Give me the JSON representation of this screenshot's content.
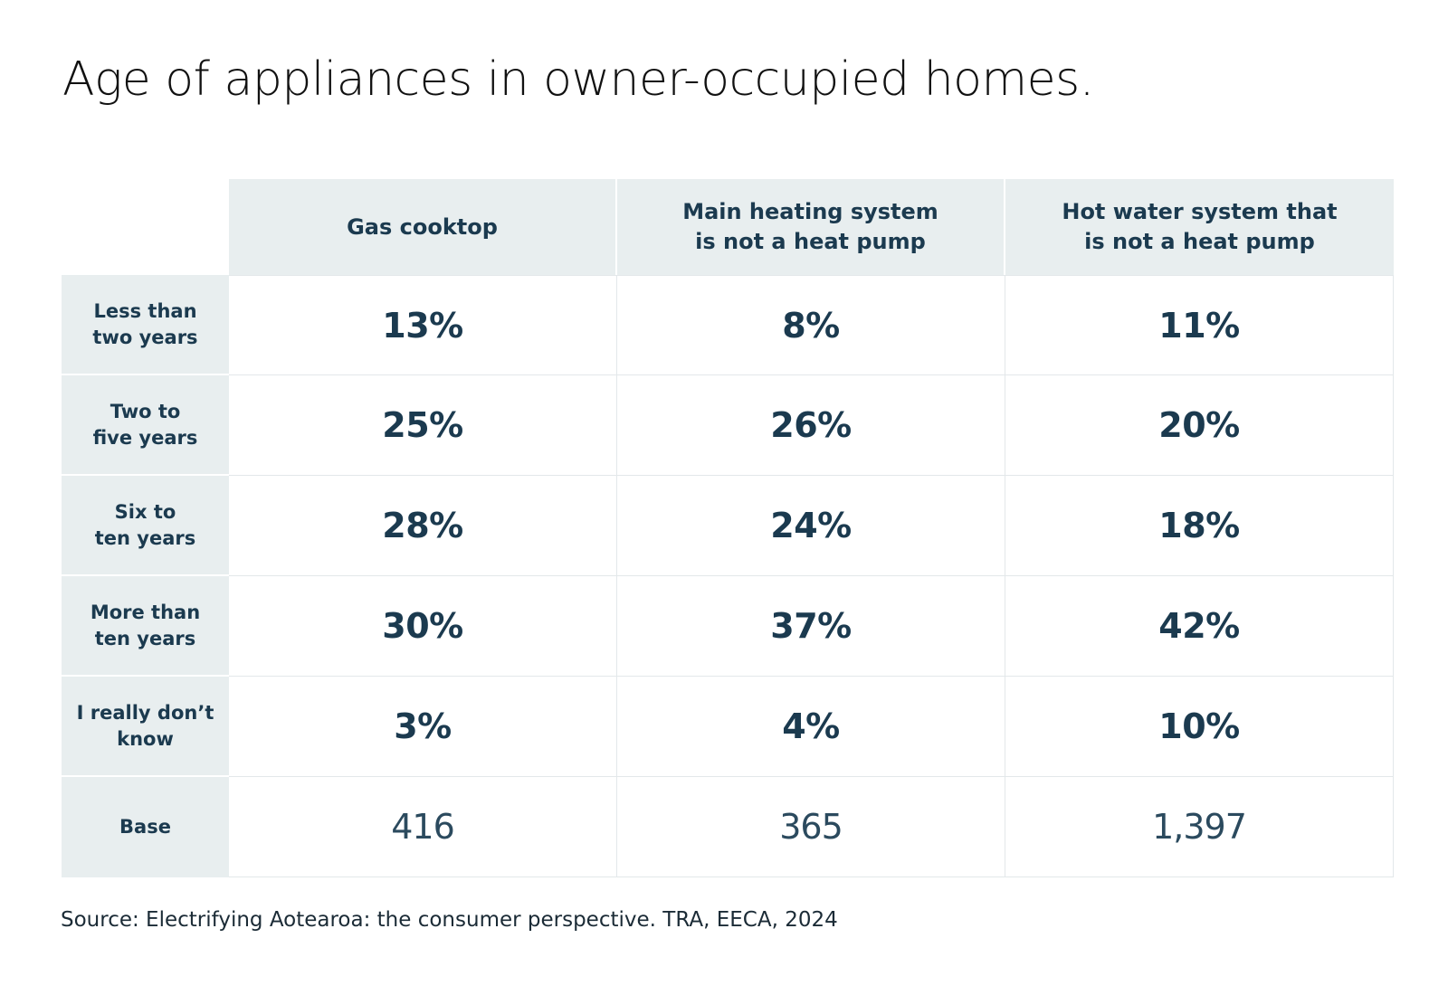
{
  "chart_data": {
    "type": "table",
    "title": "Age of appliances in owner-occupied homes.",
    "columns": [
      "Gas cooktop",
      "Main heating system\nis not a heat pump",
      "Hot water system that\nis not a heat pump"
    ],
    "rows": [
      {
        "label": "Less than\ntwo years",
        "values": [
          "13%",
          "8%",
          "11%"
        ]
      },
      {
        "label": "Two to\nfive years",
        "values": [
          "25%",
          "26%",
          "20%"
        ]
      },
      {
        "label": "Six to\nten years",
        "values": [
          "28%",
          "24%",
          "18%"
        ]
      },
      {
        "label": "More than\nten years",
        "values": [
          "30%",
          "37%",
          "42%"
        ]
      },
      {
        "label": "I really don’t\nknow",
        "values": [
          "3%",
          "4%",
          "10%"
        ]
      },
      {
        "label": "Base",
        "values": [
          "416",
          "365",
          "1,397"
        ]
      }
    ],
    "source": "Source: Electrifying Aotearoa: the consumer perspective. TRA, EECA, 2024"
  }
}
